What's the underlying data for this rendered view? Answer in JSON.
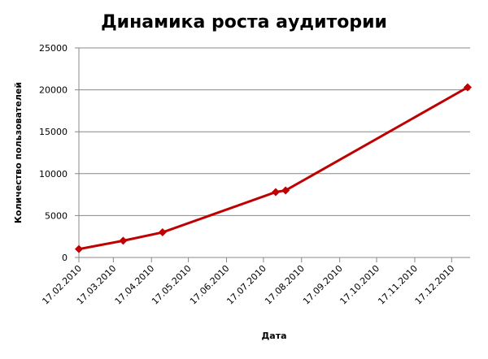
{
  "chart_data": {
    "type": "line",
    "title": "Динамика роста аудитории",
    "x_label": "Дата",
    "y_label": "Количество пользователей",
    "x": [
      "17.02.2010",
      "25.03.2010",
      "26.04.2010",
      "27.07.2010",
      "04.08.2010",
      "30.12.2010"
    ],
    "series": [
      {
        "color": "#c00000",
        "values": [
          1000,
          2000,
          3000,
          7800,
          8000,
          20300
        ]
      }
    ],
    "xlim": [
      "17.02.2010",
      "01.01.2011"
    ],
    "xticks": [
      "17.02.2010",
      "17.03.2010",
      "17.04.2010",
      "17.05.2010",
      "17.06.2010",
      "17.07.2010",
      "17.08.2010",
      "17.09.2010",
      "17.10.2010",
      "17.11.2010",
      "17.12.2010"
    ],
    "ylim": [
      0,
      25000
    ],
    "yticks": [
      0,
      5000,
      10000,
      15000,
      20000,
      25000
    ],
    "grid": true
  }
}
